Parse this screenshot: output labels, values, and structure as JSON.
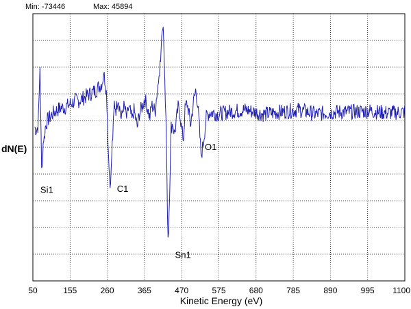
{
  "range_info": {
    "min_label": "Min: -73446",
    "max_label": "Max: 45894"
  },
  "chart_data": {
    "type": "line",
    "title": "",
    "xlabel": "Kinetic Energy (eV)",
    "ylabel": "dN(E)",
    "xlim": [
      50,
      1100
    ],
    "ylim": [
      -73446,
      45894
    ],
    "x_ticks": [
      50,
      155,
      260,
      365,
      470,
      575,
      680,
      785,
      890,
      995,
      1100
    ],
    "x_tick_labels": [
      "50",
      "155",
      "260",
      "365",
      "470",
      "575",
      "680",
      "785",
      "890",
      "995",
      "1100"
    ],
    "grid": true,
    "line_color": "#1f1fb0",
    "series": [
      {
        "x": [
          55,
          60,
          65,
          70,
          75,
          78,
          80,
          82,
          85,
          90,
          100,
          110,
          120,
          130,
          140,
          150,
          160,
          170,
          180,
          190,
          200,
          210,
          220,
          230,
          240,
          245,
          250,
          255,
          258,
          260,
          263,
          266,
          270,
          273,
          276,
          280,
          285,
          290,
          295,
          300,
          305,
          310,
          315,
          320,
          325,
          330,
          335,
          340,
          345,
          350,
          355,
          360,
          365,
          370,
          375,
          380,
          385,
          390,
          395,
          400,
          403,
          406,
          409,
          412,
          415,
          418,
          420,
          422,
          425,
          428,
          430,
          432,
          435,
          440,
          445,
          450,
          455,
          460,
          465,
          470,
          475,
          480,
          485,
          490,
          495,
          500,
          505,
          510,
          515,
          520,
          525,
          530,
          540,
          550,
          575,
          600,
          650,
          700,
          750,
          800,
          850,
          900,
          950,
          1000,
          1050,
          1100
        ],
        "y": [
          -5000,
          -6000,
          -4000,
          22000,
          -28000,
          -15000,
          -9000,
          -10000,
          -5000,
          -2000,
          0,
          2000,
          3000,
          4000,
          4000,
          5000,
          6000,
          7000,
          7000,
          8000,
          9000,
          10000,
          11000,
          12000,
          14000,
          15000,
          19000,
          15000,
          10000,
          2000,
          -15000,
          -27000,
          -30000,
          -15000,
          -8000,
          6000,
          3000,
          9000,
          4000,
          -2000,
          5000,
          3000,
          -1000,
          4000,
          2000,
          -2000,
          3000,
          -1000,
          -5000,
          1000,
          3000,
          5000,
          8000,
          6000,
          3000,
          -1000,
          5000,
          4000,
          2000,
          10000,
          14000,
          18000,
          25000,
          30000,
          38000,
          40000,
          30000,
          15000,
          5000,
          -20000,
          -45000,
          -57000,
          -40000,
          -5000,
          -3000,
          -8000,
          -2000,
          4000,
          2000,
          -6000,
          -10000,
          4000,
          6000,
          2000,
          -4000,
          2000,
          8000,
          12000,
          6000,
          -5000,
          -18000,
          -13000,
          0,
          2000,
          1000,
          2000,
          3000,
          1000,
          2000,
          3000,
          1000,
          2000,
          2000,
          2500,
          1500,
          2000
        ],
        "noise_amplitude": 3500
      }
    ],
    "annotations": [
      {
        "text": "Si1",
        "x": 75,
        "y": -28000
      },
      {
        "text": "C1",
        "x": 272,
        "y": -30000
      },
      {
        "text": "Sn1",
        "x": 432,
        "y": -57000
      },
      {
        "text": "O1",
        "x": 520,
        "y": -18000
      }
    ]
  }
}
